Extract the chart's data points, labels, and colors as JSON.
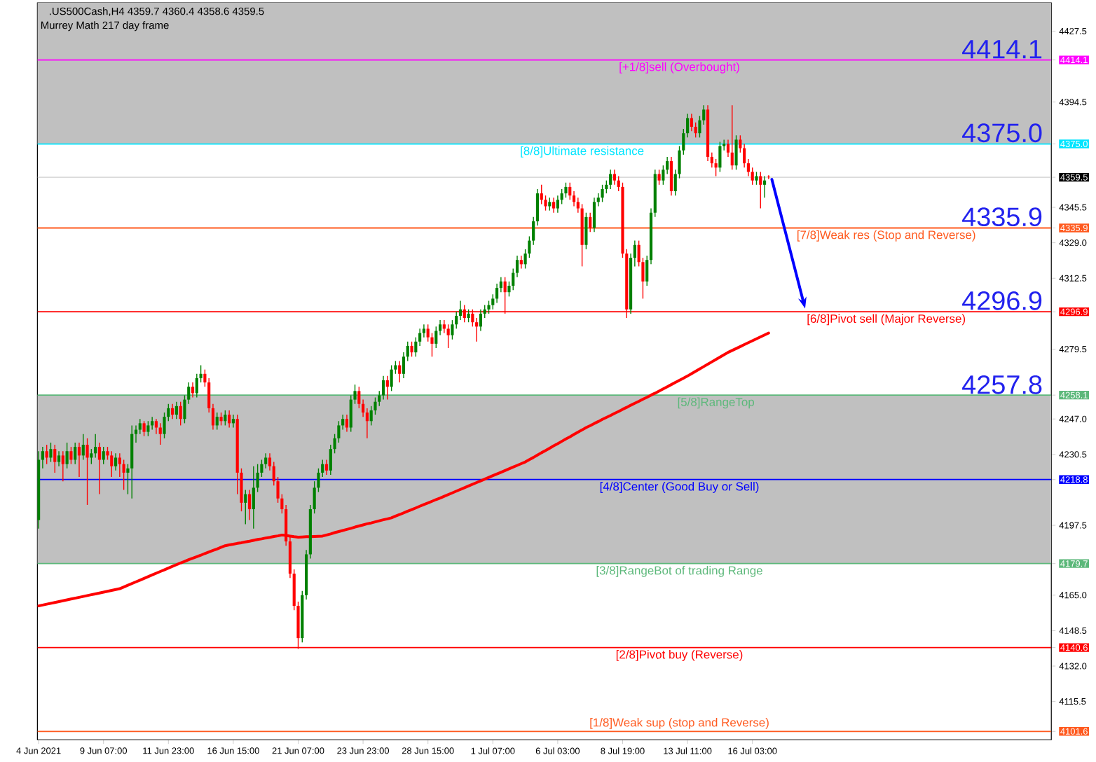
{
  "chart_data": {
    "type": "candlestick",
    "title": ".US500Cash,H4  4359.7 4360.4 4358.6 4359.5",
    "subtitle": "Murrey Math 217 day frame",
    "categories": [
      "4 Jun 2021",
      null,
      null,
      null,
      null,
      null,
      null,
      null,
      null,
      null,
      null,
      null,
      null,
      null,
      null,
      null,
      "9 Jun 07:00",
      null,
      null,
      null,
      null,
      null,
      null,
      null,
      null,
      null,
      null,
      null,
      null,
      null,
      null,
      null,
      "11 Jun 23:00",
      null,
      null,
      null,
      null,
      null,
      null,
      null,
      null,
      null,
      null,
      null,
      null,
      null,
      null,
      null,
      "16 Jun 15:00",
      null,
      null,
      null,
      null,
      null,
      null,
      null,
      null,
      null,
      null,
      null,
      null,
      null,
      null,
      null,
      "21 Jun 07:00",
      null,
      null,
      null,
      null,
      null,
      null,
      null,
      null,
      null,
      null,
      null,
      null,
      null,
      null,
      null,
      "23 Jun 23:00",
      null,
      null,
      null,
      null,
      null,
      null,
      null,
      null,
      null,
      null,
      null,
      null,
      null,
      null,
      null,
      "28 Jun 15:00",
      null,
      null,
      null,
      null,
      null,
      null,
      null,
      null,
      null,
      null,
      null,
      null,
      null,
      null,
      null,
      "1 Jul 07:00",
      null,
      null,
      null,
      null,
      null,
      null,
      null,
      null,
      null,
      null,
      null,
      null,
      null,
      null,
      null,
      "6 Jul 03:00",
      null,
      null,
      null,
      null,
      null,
      null,
      null,
      null,
      null,
      null,
      null,
      null,
      null,
      null,
      null,
      "8 Jul 19:00",
      null,
      null,
      null,
      null,
      null,
      null,
      null,
      null,
      null,
      null,
      null,
      null,
      null,
      null,
      null,
      "13 Jul 11:00",
      null,
      null,
      null,
      null,
      null,
      null,
      null,
      null,
      null,
      null,
      null,
      null,
      null,
      null,
      null,
      "16 Jul 03:00",
      null,
      null,
      null,
      null,
      null,
      null,
      null,
      null,
      null,
      null,
      null,
      null,
      null,
      null,
      null,
      null,
      null,
      null,
      null,
      null,
      null,
      null,
      null,
      null,
      null,
      null,
      null,
      null,
      null,
      null,
      null,
      null,
      null,
      null,
      null,
      null,
      null,
      null,
      null,
      null,
      null,
      null,
      null,
      null,
      null,
      null,
      null,
      null,
      null,
      null,
      null,
      null,
      null,
      null,
      null,
      null,
      null,
      null,
      null,
      null,
      null,
      null,
      null,
      null,
      null,
      null,
      null,
      null,
      null,
      null,
      null,
      null,
      null
    ],
    "ylim": [
      4097.7,
      4440.7
    ],
    "yticks": [
      {
        "value": 4427.5,
        "label": "4427.5"
      },
      {
        "value": 4414.1,
        "label": "4414.1"
      },
      {
        "value": 4394.5,
        "label": "4394.5"
      },
      {
        "value": 4375.0,
        "label": "4375.0"
      },
      {
        "value": 4359.5,
        "label": "4359.5"
      },
      {
        "value": 4345.5,
        "label": "4345.5"
      },
      {
        "value": 4335.9,
        "label": "4335.9"
      },
      {
        "value": 4329.0,
        "label": "4329.0"
      },
      {
        "value": 4312.5,
        "label": "4312.5"
      },
      {
        "value": 4296.9,
        "label": "4296.9"
      },
      {
        "value": 4279.5,
        "label": "4279.5"
      },
      {
        "value": 4258.1,
        "label": "4258.1"
      },
      {
        "value": 4247.0,
        "label": "4247.0"
      },
      {
        "value": 4230.5,
        "label": "4230.5"
      },
      {
        "value": 4218.8,
        "label": "4218.8"
      },
      {
        "value": 4197.5,
        "label": "4197.5"
      },
      {
        "value": 4179.7,
        "label": "4179.7"
      },
      {
        "value": 4165.0,
        "label": "4165.0"
      },
      {
        "value": 4148.5,
        "label": "4148.5"
      },
      {
        "value": 4140.6,
        "label": "4140.6"
      },
      {
        "value": 4132.0,
        "label": "4132.0"
      },
      {
        "value": 4115.5,
        "label": "4115.5"
      },
      {
        "value": 4101.6,
        "label": "4101.6"
      }
    ],
    "bands": [
      {
        "axis": "y",
        "from": 4375.0,
        "to": 4440.7,
        "color": "#c0c0c0"
      },
      {
        "axis": "y",
        "from": 4179.7,
        "to": 4258.1,
        "color": "#c0c0c0"
      }
    ],
    "ref_lines": [
      {
        "axis": "y",
        "value": 4414.1,
        "label": "[+1/8]sell (Overbought)",
        "color": "#ff00ff"
      },
      {
        "axis": "y",
        "value": 4375.0,
        "label": "[8/8]Ultimate resistance",
        "color": "#00e5ff"
      },
      {
        "axis": "y",
        "value": 4359.5,
        "color": "#c0c0c0"
      },
      {
        "axis": "y",
        "value": 4335.9,
        "label": "[7/8]Weak res (Stop and Reverse)",
        "color": "#ff5a1f"
      },
      {
        "axis": "y",
        "value": 4296.9,
        "label": "[6/8]Pivot sell (Major Reverse)",
        "color": "#ff0000"
      },
      {
        "axis": "y",
        "value": 4258.1,
        "label": "[5/8]RangeTop",
        "color": "#5cb87a"
      },
      {
        "axis": "y",
        "value": 4218.8,
        "label": "[4/8]Center (Good Buy or Sell)",
        "color": "#0000ff"
      },
      {
        "axis": "y",
        "value": 4179.7,
        "label": "[3/8]RangeBot of trading Range",
        "color": "#5cb87a"
      },
      {
        "axis": "y",
        "value": 4140.6,
        "label": "[2/8]Pivot buy (Reverse)",
        "color": "#ff0000"
      },
      {
        "axis": "y",
        "value": 4101.6,
        "label": "[1/8]Weak sup (stop and Reverse)",
        "color": "#ff5a1f"
      }
    ],
    "annotations": [
      {
        "text": "4414.1",
        "y": 4414.1
      },
      {
        "text": "4375.0",
        "y": 4375.0
      },
      {
        "text": "4335.9",
        "y": 4335.9
      },
      {
        "text": "4296.9",
        "y": 4296.9
      },
      {
        "text": "4257.8",
        "y": 4257.8
      }
    ],
    "ohlc": [
      [
        4200,
        4232,
        4196,
        4228
      ],
      [
        4228,
        4234,
        4224,
        4232
      ],
      [
        4232,
        4235,
        4226,
        4229
      ],
      [
        4229,
        4236,
        4227,
        4233
      ],
      [
        4233,
        4235,
        4222,
        4227
      ],
      [
        4227,
        4232,
        4225,
        4230
      ],
      [
        4230,
        4232,
        4218,
        4226
      ],
      [
        4226,
        4236,
        4224,
        4232
      ],
      [
        4232,
        4234,
        4226,
        4228
      ],
      [
        4228,
        4236,
        4226,
        4234
      ],
      [
        4234,
        4236,
        4220,
        4230
      ],
      [
        4230,
        4240,
        4228,
        4235
      ],
      [
        4235,
        4238,
        4207,
        4229
      ],
      [
        4229,
        4233,
        4226,
        4231
      ],
      [
        4231,
        4240,
        4229,
        4234
      ],
      [
        4234,
        4236,
        4212,
        4228
      ],
      [
        4228,
        4234,
        4226,
        4232
      ],
      [
        4232,
        4234,
        4228,
        4230
      ],
      [
        4230,
        4232,
        4220,
        4225
      ],
      [
        4225,
        4231,
        4223,
        4229
      ],
      [
        4229,
        4231,
        4220,
        4226
      ],
      [
        4226,
        4228,
        4214,
        4222
      ],
      [
        4222,
        4226,
        4212,
        4224
      ],
      [
        4224,
        4244,
        4210,
        4240
      ],
      [
        4240,
        4244,
        4236,
        4242
      ],
      [
        4242,
        4247,
        4240,
        4245
      ],
      [
        4245,
        4246,
        4239,
        4241
      ],
      [
        4241,
        4246,
        4239,
        4244
      ],
      [
        4244,
        4248,
        4242,
        4246
      ],
      [
        4246,
        4247,
        4240,
        4243
      ],
      [
        4243,
        4245,
        4235,
        4240
      ],
      [
        4240,
        4250,
        4238,
        4248
      ],
      [
        4248,
        4254,
        4246,
        4252
      ],
      [
        4252,
        4254,
        4247,
        4249
      ],
      [
        4249,
        4255,
        4247,
        4253
      ],
      [
        4253,
        4255,
        4244,
        4247
      ],
      [
        4247,
        4258,
        4245,
        4256
      ],
      [
        4256,
        4264,
        4254,
        4262
      ],
      [
        4262,
        4264,
        4257,
        4259
      ],
      [
        4259,
        4268,
        4257,
        4266
      ],
      [
        4266,
        4272,
        4264,
        4268
      ],
      [
        4268,
        4270,
        4262,
        4264
      ],
      [
        4264,
        4266,
        4250,
        4252
      ],
      [
        4252,
        4254,
        4242,
        4244
      ],
      [
        4244,
        4250,
        4242,
        4248
      ],
      [
        4248,
        4250,
        4244,
        4246
      ],
      [
        4246,
        4251,
        4244,
        4249
      ],
      [
        4249,
        4251,
        4243,
        4245
      ],
      [
        4245,
        4249,
        4243,
        4247
      ],
      [
        4247,
        4249,
        4212,
        4222
      ],
      [
        4222,
        4224,
        4204,
        4208
      ],
      [
        4208,
        4214,
        4198,
        4212
      ],
      [
        4212,
        4214,
        4200,
        4205
      ],
      [
        4205,
        4225,
        4196,
        4215
      ],
      [
        4215,
        4226,
        4213,
        4222
      ],
      [
        4222,
        4228,
        4220,
        4226
      ],
      [
        4226,
        4231,
        4224,
        4229
      ],
      [
        4229,
        4231,
        4223,
        4225
      ],
      [
        4225,
        4227,
        4216,
        4218
      ],
      [
        4218,
        4220,
        4208,
        4210
      ],
      [
        4210,
        4212,
        4203,
        4205
      ],
      [
        4205,
        4207,
        4188,
        4190
      ],
      [
        4190,
        4192,
        4173,
        4175
      ],
      [
        4175,
        4177,
        4158,
        4160
      ],
      [
        4160,
        4162,
        4140,
        4145
      ],
      [
        4145,
        4167,
        4143,
        4165
      ],
      [
        4165,
        4186,
        4163,
        4184
      ],
      [
        4184,
        4207,
        4182,
        4205
      ],
      [
        4205,
        4218,
        4203,
        4215
      ],
      [
        4215,
        4224,
        4213,
        4222
      ],
      [
        4222,
        4228,
        4220,
        4226
      ],
      [
        4226,
        4228,
        4221,
        4223
      ],
      [
        4223,
        4235,
        4221,
        4233
      ],
      [
        4233,
        4240,
        4231,
        4238
      ],
      [
        4238,
        4246,
        4236,
        4244
      ],
      [
        4244,
        4249,
        4242,
        4247
      ],
      [
        4247,
        4249,
        4241,
        4243
      ],
      [
        4243,
        4258,
        4241,
        4256
      ],
      [
        4256,
        4263,
        4254,
        4260
      ],
      [
        4260,
        4262,
        4252,
        4254
      ],
      [
        4254,
        4256,
        4248,
        4250
      ],
      [
        4250,
        4252,
        4238,
        4246
      ],
      [
        4246,
        4253,
        4244,
        4251
      ],
      [
        4251,
        4257,
        4249,
        4255
      ],
      [
        4255,
        4260,
        4253,
        4258
      ],
      [
        4258,
        4267,
        4256,
        4265
      ],
      [
        4265,
        4267,
        4256,
        4262
      ],
      [
        4262,
        4272,
        4260,
        4270
      ],
      [
        4270,
        4274,
        4268,
        4272
      ],
      [
        4272,
        4274,
        4264,
        4268
      ],
      [
        4268,
        4278,
        4266,
        4276
      ],
      [
        4276,
        4283,
        4274,
        4281
      ],
      [
        4281,
        4283,
        4276,
        4278
      ],
      [
        4278,
        4285,
        4276,
        4283
      ],
      [
        4283,
        4289,
        4281,
        4287
      ],
      [
        4287,
        4291,
        4285,
        4289
      ],
      [
        4289,
        4291,
        4283,
        4285
      ],
      [
        4285,
        4287,
        4276,
        4282
      ],
      [
        4282,
        4290,
        4280,
        4288
      ],
      [
        4288,
        4293,
        4286,
        4291
      ],
      [
        4291,
        4293,
        4287,
        4289
      ],
      [
        4289,
        4291,
        4280,
        4286
      ],
      [
        4286,
        4293,
        4284,
        4291
      ],
      [
        4291,
        4297,
        4289,
        4295
      ],
      [
        4295,
        4302,
        4293,
        4298
      ],
      [
        4298,
        4300,
        4292,
        4294
      ],
      [
        4294,
        4298,
        4292,
        4296
      ],
      [
        4296,
        4298,
        4290,
        4292
      ],
      [
        4292,
        4294,
        4283,
        4290
      ],
      [
        4290,
        4298,
        4288,
        4296
      ],
      [
        4296,
        4300,
        4294,
        4298
      ],
      [
        4298,
        4302,
        4296,
        4300
      ],
      [
        4300,
        4305,
        4298,
        4303
      ],
      [
        4303,
        4310,
        4301,
        4308
      ],
      [
        4308,
        4313,
        4306,
        4311
      ],
      [
        4311,
        4313,
        4296,
        4306
      ],
      [
        4306,
        4311,
        4304,
        4309
      ],
      [
        4309,
        4317,
        4307,
        4315
      ],
      [
        4315,
        4323,
        4313,
        4321
      ],
      [
        4321,
        4323,
        4317,
        4319
      ],
      [
        4319,
        4326,
        4317,
        4324
      ],
      [
        4324,
        4332,
        4322,
        4330
      ],
      [
        4330,
        4341,
        4328,
        4339
      ],
      [
        4339,
        4354,
        4337,
        4352
      ],
      [
        4352,
        4356,
        4347,
        4349
      ],
      [
        4349,
        4351,
        4344,
        4346
      ],
      [
        4346,
        4350,
        4344,
        4348
      ],
      [
        4348,
        4350,
        4343,
        4345
      ],
      [
        4345,
        4351,
        4343,
        4349
      ],
      [
        4349,
        4354,
        4347,
        4352
      ],
      [
        4352,
        4357,
        4350,
        4355
      ],
      [
        4355,
        4357,
        4349,
        4351
      ],
      [
        4351,
        4353,
        4346,
        4348
      ],
      [
        4348,
        4350,
        4343,
        4345
      ],
      [
        4345,
        4347,
        4318,
        4328
      ],
      [
        4328,
        4343,
        4326,
        4341
      ],
      [
        4341,
        4343,
        4334,
        4336
      ],
      [
        4336,
        4350,
        4334,
        4348
      ],
      [
        4348,
        4352,
        4346,
        4350
      ],
      [
        4350,
        4356,
        4348,
        4354
      ],
      [
        4354,
        4358,
        4352,
        4356
      ],
      [
        4356,
        4363,
        4354,
        4361
      ],
      [
        4361,
        4363,
        4356,
        4358
      ],
      [
        4358,
        4360,
        4353,
        4355
      ],
      [
        4355,
        4357,
        4322,
        4324
      ],
      [
        4324,
        4326,
        4294,
        4298
      ],
      [
        4298,
        4324,
        4296,
        4322
      ],
      [
        4322,
        4330,
        4318,
        4328
      ],
      [
        4328,
        4330,
        4318,
        4320
      ],
      [
        4320,
        4322,
        4303,
        4311
      ],
      [
        4311,
        4323,
        4309,
        4321
      ],
      [
        4321,
        4345,
        4319,
        4343
      ],
      [
        4343,
        4363,
        4341,
        4361
      ],
      [
        4361,
        4363,
        4356,
        4358
      ],
      [
        4358,
        4365,
        4356,
        4363
      ],
      [
        4363,
        4369,
        4361,
        4367
      ],
      [
        4367,
        4369,
        4351,
        4353
      ],
      [
        4353,
        4363,
        4351,
        4361
      ],
      [
        4361,
        4374,
        4359,
        4372
      ],
      [
        4372,
        4382,
        4370,
        4380
      ],
      [
        4380,
        4389,
        4378,
        4387
      ],
      [
        4387,
        4389,
        4381,
        4383
      ],
      [
        4383,
        4385,
        4378,
        4380
      ],
      [
        4380,
        4388,
        4378,
        4386
      ],
      [
        4386,
        4393,
        4384,
        4391
      ],
      [
        4391,
        4393,
        4367,
        4369
      ],
      [
        4369,
        4371,
        4364,
        4366
      ],
      [
        4366,
        4368,
        4360,
        4364
      ],
      [
        4364,
        4376,
        4362,
        4374
      ],
      [
        4374,
        4377,
        4372,
        4375
      ],
      [
        4375,
        4377,
        4369,
        4371
      ],
      [
        4371,
        4393,
        4363,
        4365
      ],
      [
        4365,
        4379,
        4363,
        4377
      ],
      [
        4377,
        4379,
        4371,
        4373
      ],
      [
        4373,
        4375,
        4364,
        4366
      ],
      [
        4366,
        4368,
        4360,
        4362
      ],
      [
        4362,
        4364,
        4356,
        4358
      ],
      [
        4358,
        4362,
        4356,
        4360
      ],
      [
        4360,
        4362,
        4345,
        4356
      ],
      [
        4356,
        4360,
        4350,
        4358
      ],
      [
        4359.7,
        4360.4,
        4358.6,
        4359.5
      ],
      null,
      null,
      null,
      null,
      null,
      null,
      null,
      null,
      null,
      null,
      null,
      null,
      null,
      null,
      null,
      null,
      null,
      null,
      null,
      null,
      null,
      null,
      null,
      null,
      null,
      null,
      null,
      null,
      null,
      null,
      null,
      null,
      null,
      null,
      null,
      null,
      null,
      null,
      null,
      null,
      null,
      null,
      null,
      null,
      null,
      null,
      null,
      null,
      null,
      null,
      null,
      null,
      null,
      null,
      null,
      null,
      null,
      null,
      null,
      null,
      null,
      null,
      null,
      null,
      null,
      null,
      null,
      null,
      null
    ],
    "series": [
      {
        "type": "line",
        "color": "#ff0000",
        "values": [
          4160,
          4160.4,
          4160.8,
          4161.2,
          4161.6,
          4162,
          4162.4,
          4162.8,
          4163.2,
          4163.6,
          4164,
          4164.4,
          4164.8,
          4165.2,
          4165.6,
          4166,
          4166.4,
          4166.8,
          4167.2,
          4167.6,
          4168,
          4168.8,
          4169.6,
          4170.4,
          4171.2,
          4172,
          4172.8,
          4173.6,
          4174.4,
          4175.2,
          4176,
          4176.8,
          4177.6,
          4178.4,
          4179.2,
          4180,
          4180.7,
          4181.5,
          4182.2,
          4182.9,
          4183.6,
          4184.4,
          4185.1,
          4185.8,
          4186.5,
          4187.3,
          4188,
          4188.4,
          4188.7,
          4189.1,
          4189.4,
          4189.8,
          4190.1,
          4190.5,
          4190.9,
          4191.2,
          4191.6,
          4191.9,
          4192.3,
          4192.6,
          4193,
          4192.8,
          4192.5,
          4192.2,
          4192,
          4192.1,
          4192.2,
          4192.2,
          4192.3,
          4192.4,
          4192.5,
          4193,
          4193.5,
          4194.1,
          4194.6,
          4195.1,
          4195.6,
          4196.1,
          4196.7,
          4197.2,
          4197.7,
          4198.2,
          4198.6,
          4199.1,
          4199.6,
          4200.1,
          4200.5,
          4201,
          4201.8,
          4202.5,
          4203.3,
          4204.1,
          4204.8,
          4205.6,
          4206.4,
          4207.2,
          4207.9,
          4208.7,
          4209.5,
          4210.2,
          4211,
          4211.8,
          4212.6,
          4213.4,
          4214.2,
          4215,
          4215.8,
          4216.6,
          4217.4,
          4218.2,
          4219,
          4219.8,
          4220.6,
          4221.4,
          4222.2,
          4223,
          4223.8,
          4224.6,
          4225.4,
          4226.2,
          4227,
          4228.1,
          4229.1,
          4230.2,
          4231.3,
          4232.3,
          4233.4,
          4234.5,
          4235.5,
          4236.6,
          4237.7,
          4238.7,
          4239.8,
          4240.9,
          4241.9,
          4243,
          4243.9,
          4244.9,
          4245.8,
          4246.8,
          4247.7,
          4248.6,
          4249.6,
          4250.5,
          4251.5,
          4252.4,
          4253.4,
          4254.3,
          4255.2,
          4256.2,
          4257.1,
          4258.1,
          4259,
          4260,
          4261,
          4262,
          4263,
          4264,
          4265,
          4266,
          4267,
          4268.1,
          4269.2,
          4270.3,
          4271.4,
          4272.5,
          4273.6,
          4274.7,
          4275.8,
          4276.9,
          4278,
          4278.9,
          4279.8,
          4280.7,
          4281.6,
          4282.5,
          4283.4,
          4284.3,
          4285.2,
          4286.1,
          4287,
          null,
          null,
          null,
          null,
          null,
          null,
          null,
          null,
          null,
          null,
          null,
          null,
          null,
          null,
          null,
          null,
          null,
          null,
          null,
          null,
          null,
          null,
          null,
          null,
          null,
          null,
          null,
          null,
          null,
          null,
          null,
          null,
          null,
          null,
          null,
          null,
          null,
          null,
          null,
          null,
          null,
          null,
          null,
          null,
          null,
          null,
          null,
          null,
          null,
          null,
          null,
          null,
          null,
          null,
          null,
          null,
          null,
          null,
          null,
          null,
          null,
          null,
          null,
          null,
          null,
          null,
          null,
          null,
          null
        ]
      }
    ]
  }
}
